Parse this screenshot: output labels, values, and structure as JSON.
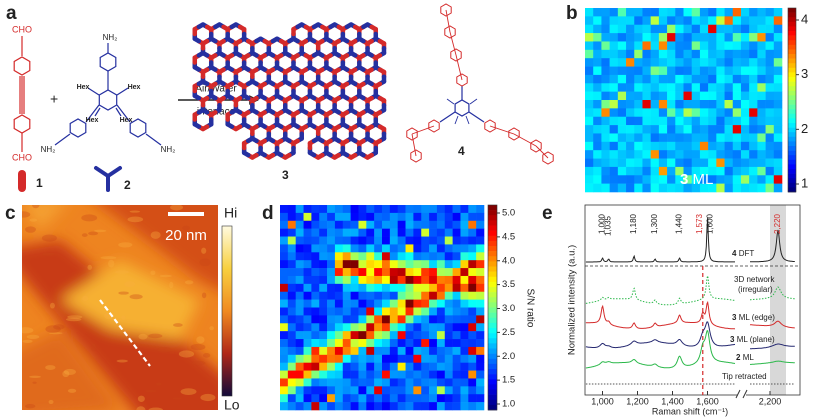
{
  "panel_a": {
    "label": "a",
    "compound_1": {
      "top_group": "CHO",
      "bottom_group": "CHO",
      "number": "1"
    },
    "compound_2": {
      "amine_groups": [
        "NH₂",
        "NH₂",
        "NH₂"
      ],
      "hexyl_groups": [
        "Hex",
        "Hex",
        "Hex",
        "Hex"
      ],
      "number": "2"
    },
    "reaction": {
      "above_arrow": "Air/Water",
      "below_arrow": "interface"
    },
    "product_number": "3",
    "compound_4_number": "4"
  },
  "panel_b": {
    "label": "b",
    "colorbar_ticks": [
      4,
      3,
      2,
      1
    ],
    "annotation": {
      "number": "3",
      "text": "ML"
    }
  },
  "panel_c": {
    "label": "c",
    "scale_bar": "20 nm",
    "colorbar_top": "Hi",
    "colorbar_bottom": "Lo"
  },
  "panel_d": {
    "label": "d",
    "colorbar_title": "S/N ratio",
    "colorbar_ticks": [
      {
        "value": 5,
        "label": "5.0"
      },
      {
        "value": 4.5,
        "label": "4.5"
      },
      {
        "value": 4,
        "label": "4.0"
      },
      {
        "value": 3.5,
        "label": "3.5"
      },
      {
        "value": 3,
        "label": "3.0"
      },
      {
        "value": 2.5,
        "label": "2.5"
      },
      {
        "value": 2,
        "label": "2.0"
      },
      {
        "value": 1.5,
        "label": "1.5"
      },
      {
        "value": 1,
        "label": "1.0"
      }
    ]
  },
  "panel_e": {
    "label": "e",
    "y_title": "Normalized intensity (a.u.)",
    "x_title": "Raman shift (cm⁻¹)",
    "x_ticks": [
      {
        "value": 1000,
        "label": "1,000"
      },
      {
        "value": 1200,
        "label": "1,200"
      },
      {
        "value": 1400,
        "label": "1,400"
      },
      {
        "value": 1600,
        "label": "1,600"
      },
      {
        "value": 2200,
        "label": "2,200"
      }
    ],
    "peak_labels": [
      {
        "value": 1000,
        "label": "1,000",
        "color": "#222222"
      },
      {
        "value": 1035,
        "label": "1,035",
        "color": "#222222"
      },
      {
        "value": 1180,
        "label": "1,180",
        "color": "#222222"
      },
      {
        "value": 1300,
        "label": "1,300",
        "color": "#222222"
      },
      {
        "value": 1440,
        "label": "1,440",
        "color": "#222222"
      },
      {
        "value": 1573,
        "label": "1,573",
        "color": "#d42a2a"
      },
      {
        "value": 1600,
        "label": "1,600",
        "color": "#222222"
      },
      {
        "value": 2220,
        "label": "2,220",
        "color": "#d42a2a"
      }
    ],
    "traces": [
      {
        "number": "4",
        "text": "DFT"
      },
      {
        "text": "3D network",
        "text2": "(irregular)"
      },
      {
        "number": "3",
        "text": "ML (edge)"
      },
      {
        "number": "3",
        "text": "ML (plane)"
      },
      {
        "number": "2",
        "text": "ML"
      },
      {
        "text": "Tip retracted"
      }
    ]
  }
}
